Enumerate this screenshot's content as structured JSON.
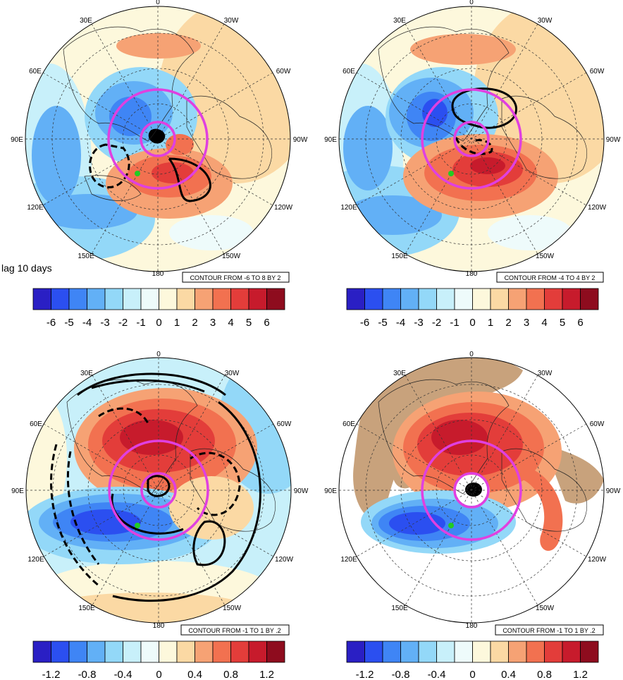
{
  "caption": "lag 10 days",
  "panels": [
    {
      "id": "top-left",
      "contour_label": "CONTOUR FROM -6 TO 8 BY 2",
      "colorbar_labels": [
        "-6",
        "-5",
        "-4",
        "-3",
        "-2",
        "-1",
        "0",
        "1",
        "2",
        "3",
        "4",
        "5",
        "6"
      ],
      "lon_labels": {
        "top": "0",
        "top_left": "30E",
        "top_right": "30W",
        "left_upper": "60E",
        "right_upper": "60W",
        "left": "90E",
        "right": "90W",
        "left_lower": "120E",
        "right_lower": "120W",
        "bottom_left": "150E",
        "bottom_right": "150W",
        "bottom": "180"
      }
    },
    {
      "id": "top-right",
      "contour_label": "CONTOUR FROM -4 TO 4 BY 2",
      "colorbar_labels": [
        "-6",
        "-5",
        "-4",
        "-3",
        "-2",
        "-1",
        "0",
        "1",
        "2",
        "3",
        "4",
        "5",
        "6"
      ],
      "lon_labels": {
        "top": "0",
        "top_left": "30E",
        "top_right": "30W",
        "left_upper": "60E",
        "right_upper": "60W",
        "left": "90E",
        "right": "90W",
        "left_lower": "120E",
        "right_lower": "120W",
        "bottom_left": "150E",
        "bottom_right": "150W",
        "bottom": "180"
      }
    },
    {
      "id": "bottom-left",
      "contour_label": "CONTOUR FROM -1 TO 1 BY .2",
      "colorbar_labels": [
        "-1.2",
        "-0.8",
        "-0.4",
        "0",
        "0.4",
        "0.8",
        "1.2"
      ],
      "lon_labels": {
        "top": "0",
        "top_left": "30E",
        "top_right": "30W",
        "left_upper": "60E",
        "right_upper": "60W",
        "left": "90E",
        "right": "90W",
        "left_lower": "120E",
        "right_lower": "120W",
        "bottom_left": "150E",
        "bottom_right": "150W",
        "bottom": "180"
      }
    },
    {
      "id": "bottom-right",
      "contour_label": "CONTOUR FROM -1 TO 1 BY .2",
      "colorbar_labels": [
        "-1.2",
        "-0.8",
        "-0.4",
        "0",
        "0.4",
        "0.8",
        "1.2"
      ],
      "lon_labels": {
        "top": "0",
        "top_left": "30E",
        "top_right": "30W",
        "left_upper": "60E",
        "right_upper": "60W",
        "left": "90E",
        "right": "90W",
        "left_lower": "120E",
        "right_lower": "120W",
        "bottom_left": "150E",
        "bottom_right": "150W",
        "bottom": "180"
      }
    }
  ],
  "colors": {
    "palette": [
      "#2a1fc4",
      "#2b4ff0",
      "#3f85f5",
      "#62b0f6",
      "#93d8f8",
      "#c8f0fa",
      "#eefbfb",
      "#fdf8dc",
      "#fbd9a4",
      "#f6a274",
      "#f27150",
      "#e33d3a",
      "#c71b2c",
      "#8e0c1e"
    ],
    "circle": "#e040e0",
    "land": "#c8a27c",
    "green_marker": "#22cc22"
  }
}
